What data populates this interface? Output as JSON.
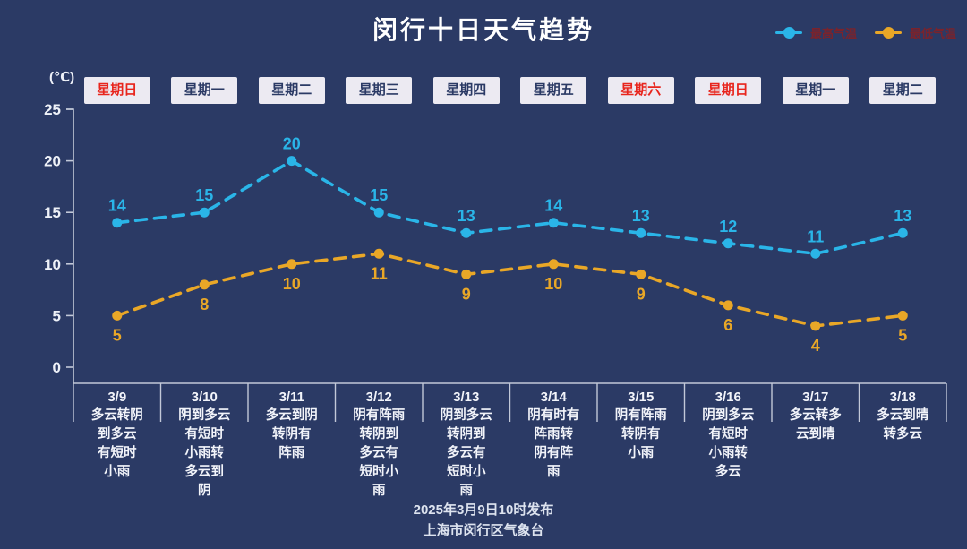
{
  "title": "闵行十日天气趋势",
  "unit_label": "(℃)",
  "legend": [
    {
      "label": "最高气温",
      "color": "#2ab5e8"
    },
    {
      "label": "最低气温",
      "color": "#e9a727"
    }
  ],
  "footer": {
    "line1": "2025年3月9日10时发布",
    "line2": "上海市闵行区气象台"
  },
  "colors": {
    "background": "#2b3a65",
    "axis": "#c2c8d8",
    "high": "#2ab5e8",
    "low": "#e9a727",
    "weekday_box_bg": "#eceaf2",
    "weekday_text": "#2b3a65",
    "weekday_text_highlight": "#e8251d",
    "legend_text": "#7a232c",
    "tick_text": "#eef1f8"
  },
  "chart_data": {
    "type": "line",
    "title": "闵行十日天气趋势",
    "x": [
      "3/9",
      "3/10",
      "3/11",
      "3/12",
      "3/13",
      "3/14",
      "3/15",
      "3/16",
      "3/17",
      "3/18"
    ],
    "weekdays": [
      {
        "label": "星期日",
        "highlight": true
      },
      {
        "label": "星期一",
        "highlight": false
      },
      {
        "label": "星期二",
        "highlight": false
      },
      {
        "label": "星期三",
        "highlight": false
      },
      {
        "label": "星期四",
        "highlight": false
      },
      {
        "label": "星期五",
        "highlight": false
      },
      {
        "label": "星期六",
        "highlight": true
      },
      {
        "label": "星期日",
        "highlight": true
      },
      {
        "label": "星期一",
        "highlight": false
      },
      {
        "label": "星期二",
        "highlight": false
      }
    ],
    "series": [
      {
        "name": "最高气温",
        "color": "#2ab5e8",
        "values": [
          14,
          15,
          20,
          15,
          13,
          14,
          13,
          12,
          11,
          13
        ]
      },
      {
        "name": "最低气温",
        "color": "#e9a727",
        "values": [
          5,
          8,
          10,
          11,
          9,
          10,
          9,
          6,
          4,
          5
        ]
      }
    ],
    "descriptions": [
      [
        "多云转阴",
        "到多云",
        "有短时",
        "小雨"
      ],
      [
        "阴到多云",
        "有短时",
        "小雨转",
        "多云到",
        "阴"
      ],
      [
        "多云到阴",
        "转阴有",
        "阵雨"
      ],
      [
        "阴有阵雨",
        "转阴到",
        "多云有",
        "短时小",
        "雨"
      ],
      [
        "阴到多云",
        "转阴到",
        "多云有",
        "短时小",
        "雨"
      ],
      [
        "阴有时有",
        "阵雨转",
        "阴有阵",
        "雨"
      ],
      [
        "阴有阵雨",
        "转阴有",
        "小雨"
      ],
      [
        "阴到多云",
        "有短时",
        "小雨转",
        "多云"
      ],
      [
        "多云转多",
        "云到晴"
      ],
      [
        "多云到晴",
        "转多云"
      ]
    ],
    "ylabel": "(℃)",
    "ylim": [
      0,
      25
    ],
    "yticks": [
      0,
      5,
      10,
      15,
      20,
      25
    ],
    "grid": false,
    "legend_position": "top-right",
    "line_style": "dashed"
  }
}
